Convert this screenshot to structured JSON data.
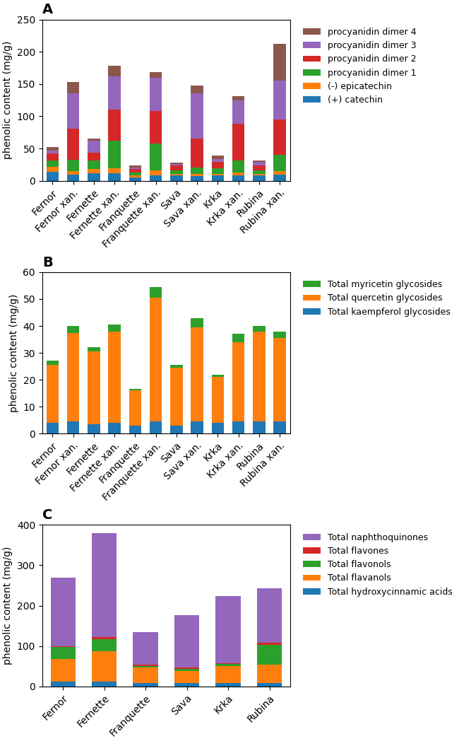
{
  "chart_data": [
    {
      "type": "bar",
      "stacked": true,
      "title": "A",
      "categories": [
        "Fernor",
        "Fernor xan.",
        "Fernette",
        "Fernette xan.",
        "Franquette",
        "Franquette xan.",
        "Sava",
        "Sava xan.",
        "Krka",
        "Krka xan.",
        "Rubina",
        "Rubina xan."
      ],
      "series": [
        {
          "name": "(+) catechin",
          "values": [
            14,
            10,
            12,
            12,
            5,
            8,
            8,
            7,
            8,
            8,
            8,
            10
          ]
        },
        {
          "name": "(-) epicatechin",
          "values": [
            8,
            5,
            6,
            8,
            3,
            8,
            3,
            4,
            3,
            5,
            3,
            5
          ]
        },
        {
          "name": "procyanidin dimer 1",
          "values": [
            10,
            18,
            14,
            42,
            5,
            42,
            5,
            10,
            8,
            18,
            5,
            25
          ]
        },
        {
          "name": "procyanidin dimer 2",
          "values": [
            10,
            48,
            12,
            48,
            5,
            50,
            8,
            45,
            10,
            57,
            8,
            55
          ]
        },
        {
          "name": "procyanidin dimer 3",
          "values": [
            5,
            55,
            18,
            52,
            3,
            52,
            2,
            70,
            5,
            37,
            5,
            60
          ]
        },
        {
          "name": "procyanidin dimer 4",
          "values": [
            5,
            17,
            4,
            16,
            3,
            8,
            2,
            12,
            5,
            6,
            3,
            57
          ]
        }
      ],
      "ylabel": "phenolic content (mg/g)",
      "ylim": [
        0,
        250
      ],
      "yticks": [
        0,
        50,
        100,
        150,
        200,
        250
      ],
      "legend": "upper left"
    },
    {
      "type": "bar",
      "stacked": true,
      "title": "B",
      "categories": [
        "Fernor",
        "Fernor xan.",
        "Fernette",
        "Fernette xan.",
        "Franquette",
        "Franquette xan.",
        "Sava",
        "Sava xan.",
        "Krka",
        "Krka xan.",
        "Rubina",
        "Rubina xan."
      ],
      "series": [
        {
          "name": "Total kaempferol glycosides",
          "values": [
            4.0,
            4.5,
            3.5,
            4.0,
            3.0,
            4.5,
            3.0,
            4.5,
            4.0,
            4.5,
            4.5,
            4.5
          ]
        },
        {
          "name": "Total quercetin glycosides",
          "values": [
            21.5,
            33.0,
            27.0,
            34.0,
            13.0,
            46.0,
            21.5,
            35.0,
            17.0,
            29.5,
            33.5,
            31.0
          ]
        },
        {
          "name": "Total myricetin glycosides",
          "values": [
            1.5,
            2.5,
            1.5,
            2.5,
            0.5,
            4.0,
            1.0,
            3.5,
            1.0,
            3.0,
            2.0,
            2.5
          ]
        }
      ],
      "ylabel": "phenolic content (mg/g)",
      "ylim": [
        0,
        60
      ],
      "yticks": [
        0,
        10,
        20,
        30,
        40,
        50,
        60
      ],
      "legend": "upper left"
    },
    {
      "type": "bar",
      "stacked": true,
      "title": "C",
      "categories": [
        "Fernor",
        "Fernette",
        "Franquette",
        "Sava",
        "Krka",
        "Rubina"
      ],
      "series": [
        {
          "name": "Total hydroxycinnamic acids",
          "values": [
            12,
            12,
            8,
            8,
            8,
            8
          ]
        },
        {
          "name": "Total flavanols",
          "values": [
            55,
            75,
            38,
            30,
            42,
            45
          ]
        },
        {
          "name": "Total flavonols",
          "values": [
            30,
            30,
            5,
            5,
            5,
            50
          ]
        },
        {
          "name": "Total flavones",
          "values": [
            3,
            5,
            3,
            4,
            3,
            5
          ]
        },
        {
          "name": "Total naphthoquinones",
          "values": [
            170,
            258,
            80,
            130,
            165,
            135
          ]
        }
      ],
      "ylabel": "phenolic content (mg/g)",
      "ylim": [
        0,
        400
      ],
      "yticks": [
        0,
        100,
        200,
        300,
        400
      ],
      "legend": "upper left"
    }
  ]
}
